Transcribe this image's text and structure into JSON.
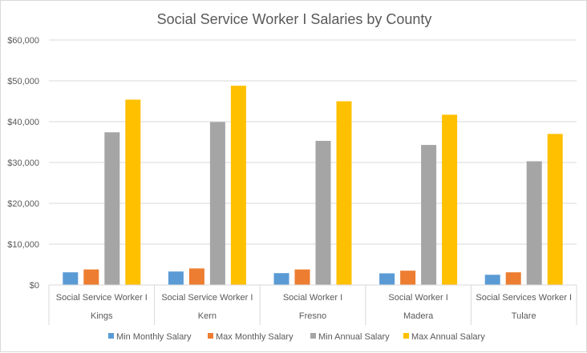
{
  "chart_data": {
    "type": "bar",
    "title": "Social Service Worker I Salaries by County",
    "xlabel": "",
    "ylabel": "",
    "ylim": [
      0,
      60000
    ],
    "ytick_step": 10000,
    "ytick_labels": [
      "$0",
      "$10,000",
      "$20,000",
      "$30,000",
      "$40,000",
      "$50,000",
      "$60,000"
    ],
    "grid": true,
    "legend_position": "bottom",
    "categories": [
      {
        "job_title": "Social Service Worker I",
        "county": "Kings"
      },
      {
        "job_title": "Social Service Worker I",
        "county": "Kern"
      },
      {
        "job_title": "Social Worker I",
        "county": "Fresno"
      },
      {
        "job_title": "Social Worker I",
        "county": "Madera"
      },
      {
        "job_title": "Social Services Worker I",
        "county": "Tulare"
      }
    ],
    "series": [
      {
        "name": "Min Monthly Salary",
        "color": "#5b9bd5",
        "values": [
          3100,
          3300,
          2900,
          2850,
          2500
        ]
      },
      {
        "name": "Max Monthly Salary",
        "color": "#ed7d31",
        "values": [
          3800,
          4050,
          3800,
          3500,
          3100
        ]
      },
      {
        "name": "Min Annual Salary",
        "color": "#a5a5a5",
        "values": [
          37400,
          39900,
          35300,
          34300,
          30300
        ]
      },
      {
        "name": "Max Annual Salary",
        "color": "#ffc000",
        "values": [
          45400,
          48800,
          45000,
          41700,
          37000
        ]
      }
    ]
  }
}
